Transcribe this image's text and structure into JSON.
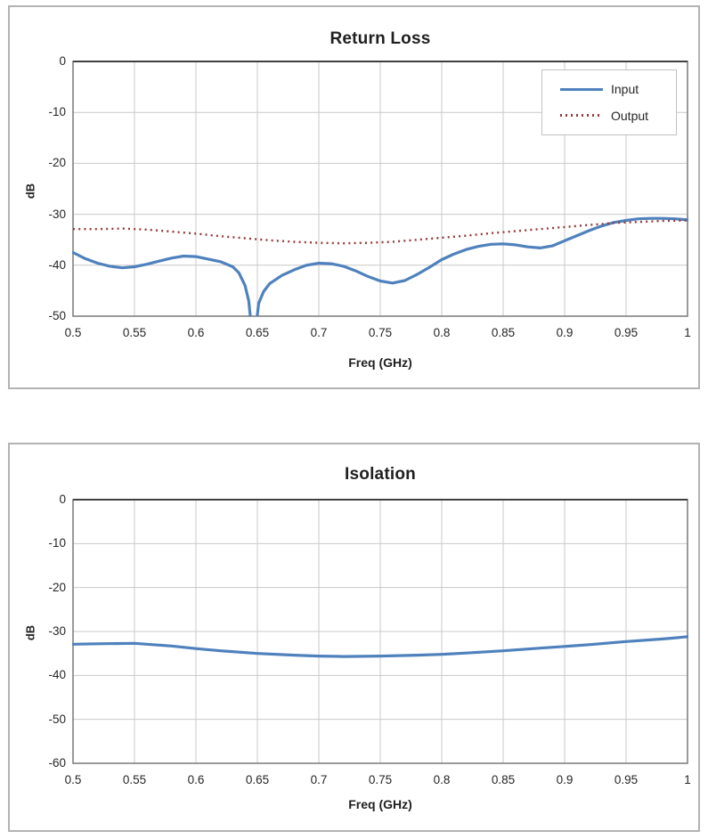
{
  "page": {
    "background": "#ffffff"
  },
  "chart_data": [
    {
      "type": "line",
      "title": "Return Loss",
      "xlabel": "Freq (GHz)",
      "ylabel": "dB",
      "xlim": [
        0.5,
        1
      ],
      "ylim": [
        -50,
        0
      ],
      "grid": true,
      "x_ticks": [
        0.5,
        0.55,
        0.6,
        0.65,
        0.7,
        0.75,
        0.8,
        0.85,
        0.9,
        0.95,
        1
      ],
      "x_tick_labels": [
        "0.5",
        "0.55",
        "0.6",
        "0.65",
        "0.7",
        "0.75",
        "0.8",
        "0.85",
        "0.9",
        "0.95",
        "1"
      ],
      "y_ticks": [
        0,
        -10,
        -20,
        -30,
        -40,
        -50
      ],
      "y_tick_labels": [
        "0",
        "-10",
        "-20",
        "-30",
        "-40",
        "-50"
      ],
      "legend": {
        "visible": true,
        "position": "top-right"
      },
      "series": [
        {
          "name": "Input",
          "color": "#4f81bd",
          "style": "solid",
          "x": [
            0.5,
            0.51,
            0.52,
            0.53,
            0.54,
            0.55,
            0.56,
            0.57,
            0.58,
            0.59,
            0.6,
            0.61,
            0.62,
            0.63,
            0.635,
            0.64,
            0.643,
            0.6455,
            0.6485,
            0.651,
            0.655,
            0.66,
            0.67,
            0.68,
            0.69,
            0.7,
            0.71,
            0.72,
            0.73,
            0.74,
            0.75,
            0.76,
            0.77,
            0.78,
            0.79,
            0.8,
            0.81,
            0.82,
            0.83,
            0.84,
            0.85,
            0.86,
            0.87,
            0.88,
            0.89,
            0.9,
            0.91,
            0.92,
            0.93,
            0.94,
            0.95,
            0.96,
            0.97,
            0.98,
            0.99,
            1.0
          ],
          "y": [
            -37.5,
            -38.7,
            -39.6,
            -40.2,
            -40.5,
            -40.3,
            -39.8,
            -39.2,
            -38.6,
            -38.2,
            -38.3,
            -38.8,
            -39.3,
            -40.3,
            -41.5,
            -44.0,
            -47.0,
            -53.0,
            -53.0,
            -47.5,
            -45.2,
            -43.6,
            -42.0,
            -40.9,
            -40.0,
            -39.6,
            -39.7,
            -40.2,
            -41.1,
            -42.2,
            -43.1,
            -43.5,
            -43.0,
            -41.8,
            -40.4,
            -38.9,
            -37.8,
            -36.9,
            -36.3,
            -35.9,
            -35.8,
            -36.0,
            -36.4,
            -36.6,
            -36.2,
            -35.2,
            -34.2,
            -33.2,
            -32.3,
            -31.6,
            -31.2,
            -30.9,
            -30.8,
            -30.8,
            -30.9,
            -31.1
          ]
        },
        {
          "name": "Output",
          "color": "#96393b",
          "style": "dotted",
          "x": [
            0.5,
            0.52,
            0.54,
            0.56,
            0.58,
            0.6,
            0.62,
            0.64,
            0.66,
            0.68,
            0.7,
            0.72,
            0.74,
            0.76,
            0.78,
            0.8,
            0.82,
            0.84,
            0.86,
            0.88,
            0.9,
            0.92,
            0.94,
            0.96,
            0.98,
            1.0
          ],
          "y": [
            -32.9,
            -32.9,
            -32.8,
            -33.0,
            -33.4,
            -33.8,
            -34.3,
            -34.7,
            -35.1,
            -35.4,
            -35.6,
            -35.7,
            -35.6,
            -35.4,
            -35.0,
            -34.6,
            -34.2,
            -33.7,
            -33.3,
            -32.9,
            -32.5,
            -32.1,
            -31.7,
            -31.5,
            -31.3,
            -31.2
          ]
        }
      ]
    },
    {
      "type": "line",
      "title": "Isolation",
      "xlabel": "Freq (GHz)",
      "ylabel": "dB",
      "xlim": [
        0.5,
        1
      ],
      "ylim": [
        -60,
        0
      ],
      "grid": true,
      "x_ticks": [
        0.5,
        0.55,
        0.6,
        0.65,
        0.7,
        0.75,
        0.8,
        0.85,
        0.9,
        0.95,
        1
      ],
      "x_tick_labels": [
        "0.5",
        "0.55",
        "0.6",
        "0.65",
        "0.7",
        "0.75",
        "0.8",
        "0.85",
        "0.9",
        "0.95",
        "1"
      ],
      "y_ticks": [
        0,
        -10,
        -20,
        -30,
        -40,
        -50,
        -60
      ],
      "y_tick_labels": [
        "0",
        "-10",
        "-20",
        "-30",
        "-40",
        "-50",
        "-60"
      ],
      "legend": {
        "visible": false
      },
      "series": [
        {
          "name": "Isolation",
          "color": "#4f81bd",
          "style": "solid",
          "x": [
            0.5,
            0.52,
            0.55,
            0.58,
            0.6,
            0.62,
            0.65,
            0.68,
            0.7,
            0.72,
            0.75,
            0.78,
            0.8,
            0.82,
            0.85,
            0.88,
            0.9,
            0.92,
            0.95,
            0.98,
            1.0
          ],
          "y": [
            -32.9,
            -32.8,
            -32.7,
            -33.3,
            -33.9,
            -34.4,
            -35.0,
            -35.4,
            -35.6,
            -35.7,
            -35.6,
            -35.4,
            -35.2,
            -34.9,
            -34.4,
            -33.8,
            -33.4,
            -33.0,
            -32.3,
            -31.7,
            -31.2
          ]
        }
      ]
    }
  ],
  "style": {
    "grid_color": "#c9c9c9",
    "plot_border_color": "#808080",
    "plot_top_border_color": "#404040",
    "text_color": "#262626"
  }
}
